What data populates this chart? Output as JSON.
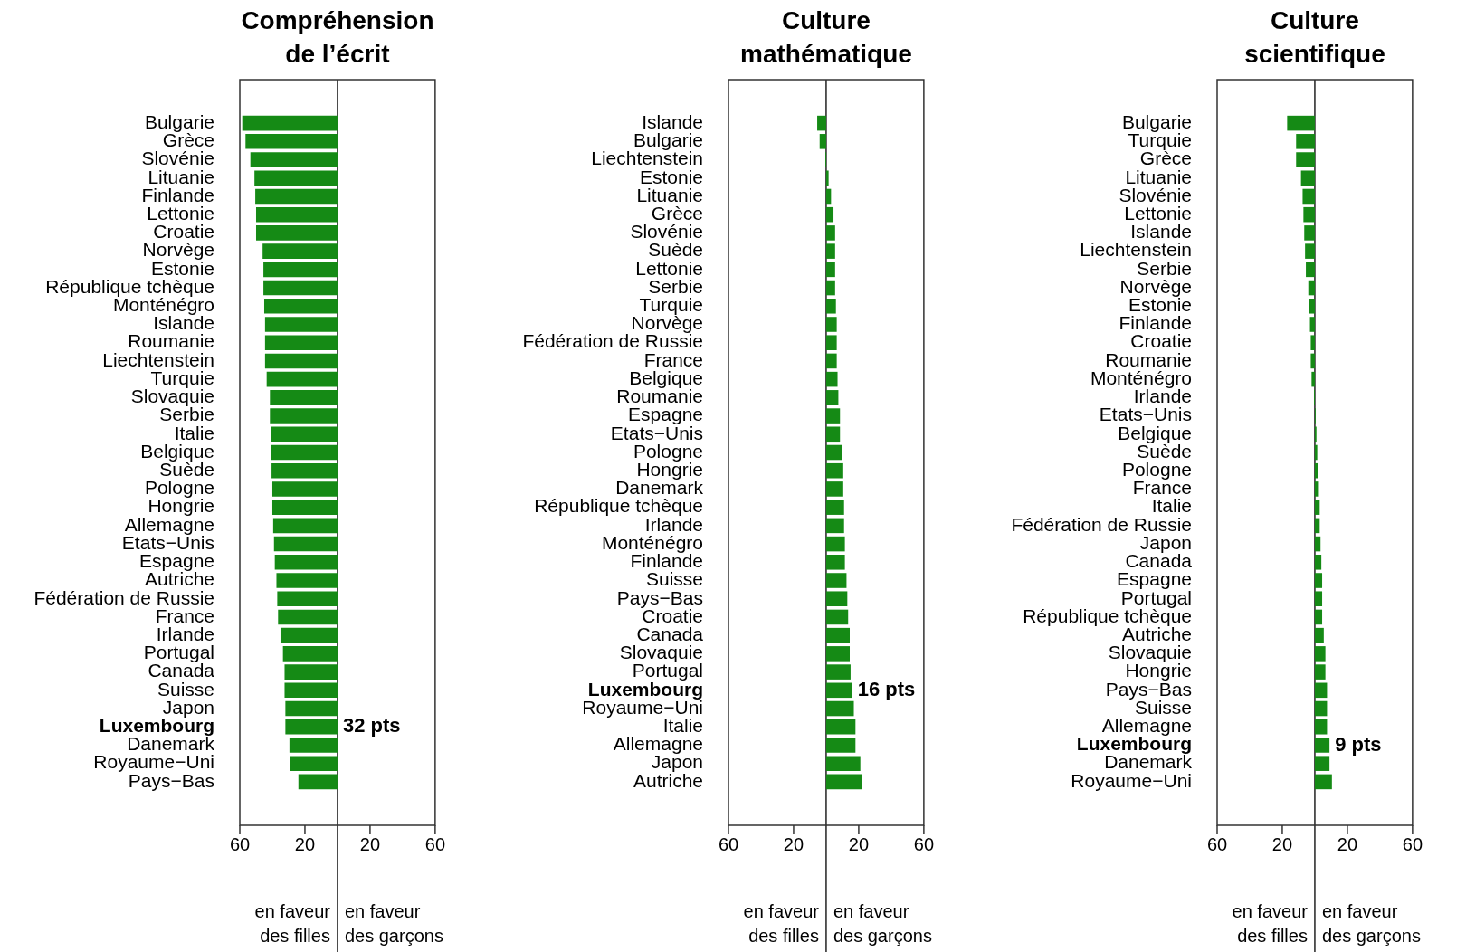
{
  "chart_data": [
    {
      "type": "bar",
      "orientation": "horizontal",
      "title": "Compréhension de l’écrit",
      "color": "#158a15",
      "categories": [
        "Bulgarie",
        "Grèce",
        "Slovénie",
        "Lituanie",
        "Finlande",
        "Lettonie",
        "Croatie",
        "Norvège",
        "Estonie",
        "République tchèque",
        "Monténégro",
        "Islande",
        "Roumanie",
        "Liechtenstein",
        "Turquie",
        "Slovaquie",
        "Serbie",
        "Italie",
        "Belgique",
        "Suède",
        "Pologne",
        "Hongrie",
        "Allemagne",
        "Etats−Unis",
        "Espagne",
        "Autriche",
        "Fédération de Russie",
        "France",
        "Irlande",
        "Portugal",
        "Canada",
        "Suisse",
        "Japon",
        "Luxembourg",
        "Danemark",
        "Royaume−Uni",
        "Pays−Bas"
      ],
      "values": [
        -58.5,
        -56.5,
        -53.5,
        -51,
        -50.5,
        -50,
        -50,
        -46,
        -45.5,
        -45.5,
        -45,
        -44.5,
        -44.5,
        -44.5,
        -43.5,
        -41.5,
        -41.5,
        -41,
        -41,
        -40.5,
        -40,
        -40,
        -39.5,
        -39,
        -38.5,
        -37.5,
        -37,
        -36.5,
        -35,
        -33.5,
        -32.5,
        -32.5,
        -32,
        -32,
        -29.5,
        -29,
        -24
      ],
      "xlim": [
        -60,
        60
      ],
      "xticks": [
        {
          "value": -60,
          "label": "60"
        },
        {
          "value": -20,
          "label": "20"
        },
        {
          "value": 20,
          "label": "20"
        },
        {
          "value": 60,
          "label": "60"
        }
      ],
      "ref_lines": [
        {
          "axis": "x",
          "value": 0
        }
      ],
      "annotations": [
        "en faveur des filles",
        "en faveur des garçons",
        {
          "text": "32 pts",
          "x": -32,
          "y": "Luxembourg"
        }
      ],
      "legend": false,
      "grid": false
    },
    {
      "type": "bar",
      "orientation": "horizontal",
      "title": "Culture mathématique",
      "color": "#158a15",
      "categories": [
        "Islande",
        "Bulgarie",
        "Liechtenstein",
        "Estonie",
        "Lituanie",
        "Grèce",
        "Slovénie",
        "Suède",
        "Lettonie",
        "Serbie",
        "Turquie",
        "Norvège",
        "Fédération de Russie",
        "France",
        "Belgique",
        "Roumanie",
        "Espagne",
        "Etats−Unis",
        "Pologne",
        "Hongrie",
        "Danemark",
        "République tchèque",
        "Irlande",
        "Monténégro",
        "Finlande",
        "Suisse",
        "Pays−Bas",
        "Croatie",
        "Canada",
        "Slovaquie",
        "Portugal",
        "Luxembourg",
        "Royaume−Uni",
        "Italie",
        "Allemagne",
        "Japon",
        "Autriche"
      ],
      "values": [
        -5.5,
        -4,
        -0.5,
        1.5,
        3,
        4.5,
        5.5,
        5.5,
        5.5,
        5.5,
        6,
        6.5,
        6.5,
        6.5,
        7,
        7.5,
        8.5,
        8.5,
        9.5,
        10.5,
        10.5,
        11,
        11,
        11.5,
        11.5,
        12.5,
        13,
        13.5,
        14.5,
        14.5,
        15,
        16,
        17,
        18,
        18,
        21,
        22
      ],
      "xlim": [
        -60,
        60
      ],
      "xticks": [
        {
          "value": -60,
          "label": "60"
        },
        {
          "value": -20,
          "label": "20"
        },
        {
          "value": 20,
          "label": "20"
        },
        {
          "value": 60,
          "label": "60"
        }
      ],
      "ref_lines": [
        {
          "axis": "x",
          "value": 0
        }
      ],
      "annotations": [
        "en faveur des filles",
        "en faveur des garçons",
        {
          "text": "16 pts",
          "x": 16,
          "y": "Luxembourg"
        }
      ],
      "legend": false,
      "grid": false
    },
    {
      "type": "bar",
      "orientation": "horizontal",
      "title": "Culture scientifique",
      "color": "#158a15",
      "categories": [
        "Bulgarie",
        "Turquie",
        "Grèce",
        "Lituanie",
        "Slovénie",
        "Lettonie",
        "Islande",
        "Liechtenstein",
        "Serbie",
        "Norvège",
        "Estonie",
        "Finlande",
        "Croatie",
        "Roumanie",
        "Monténégro",
        "Irlande",
        "Etats−Unis",
        "Belgique",
        "Suède",
        "Pologne",
        "France",
        "Italie",
        "Fédération de Russie",
        "Japon",
        "Canada",
        "Espagne",
        "Portugal",
        "République tchèque",
        "Autriche",
        "Slovaquie",
        "Hongrie",
        "Pays−Bas",
        "Suisse",
        "Allemagne",
        "Luxembourg",
        "Danemark",
        "Royaume−Uni"
      ],
      "values": [
        -17,
        -11.5,
        -11.5,
        -8.5,
        -7.5,
        -7,
        -6.5,
        -6,
        -5.5,
        -4,
        -3.5,
        -3,
        -2.5,
        -2.5,
        -2,
        -0.5,
        0.5,
        1,
        1.5,
        2,
        2.5,
        3,
        3,
        3.5,
        4,
        4.5,
        4.5,
        4.5,
        5.5,
        6.5,
        6.5,
        7.5,
        7.5,
        7.5,
        9,
        9,
        10.5
      ],
      "xlim": [
        -60,
        60
      ],
      "xticks": [
        {
          "value": -60,
          "label": "60"
        },
        {
          "value": -20,
          "label": "20"
        },
        {
          "value": 20,
          "label": "20"
        },
        {
          "value": 60,
          "label": "60"
        }
      ],
      "ref_lines": [
        {
          "axis": "x",
          "value": 0
        }
      ],
      "annotations": [
        "en faveur des filles",
        "en faveur des garçons",
        {
          "text": "9 pts",
          "x": 9,
          "y": "Luxembourg"
        }
      ],
      "legend": false,
      "grid": false
    }
  ]
}
